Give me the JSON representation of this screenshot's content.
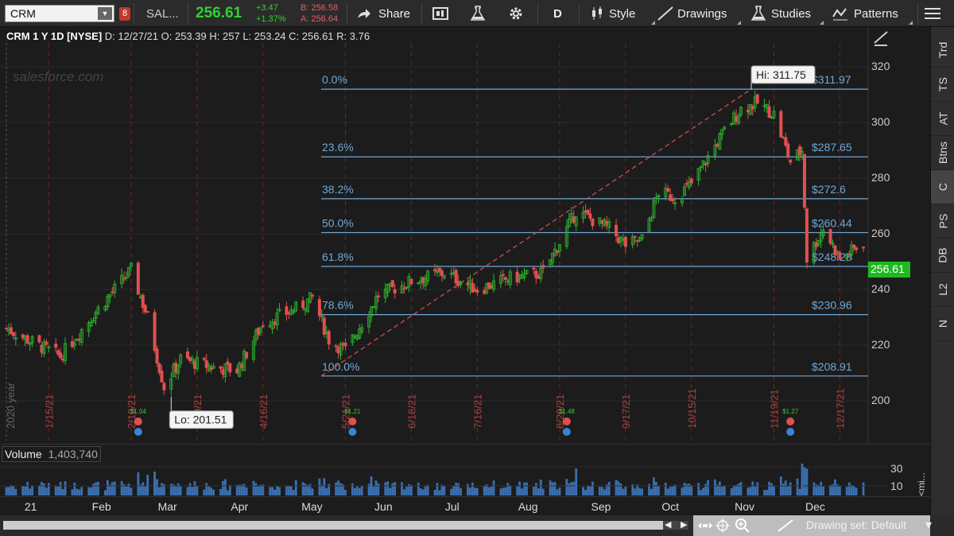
{
  "toolbar": {
    "symbol": "CRM",
    "badge": "8",
    "ticker_short": "SAL...",
    "last": "256.61",
    "net_change": "+3.47",
    "pct_change": "+1.37%",
    "bid": "B: 256.58",
    "ask": "A: 256.64",
    "share_label": "Share",
    "period_label": "D",
    "style_label": "Style",
    "drawings_label": "Drawings",
    "studies_label": "Studies",
    "patterns_label": "Patterns"
  },
  "info": {
    "title": "CRM 1 Y 1D [NYSE]",
    "date": "D: 12/27/21",
    "open": "O: 253.39",
    "high": "H: 257",
    "low": "L: 253.24",
    "close": "C: 256.61",
    "range": "R: 3.76"
  },
  "watermark": "salesforce.com",
  "year_label": "2020 year",
  "price_axis": [
    "320",
    "300",
    "280",
    "260",
    "240",
    "220",
    "200"
  ],
  "last_price_label": "256.61",
  "fib": {
    "levels": [
      {
        "pct": "0.0%",
        "price": "$311.97"
      },
      {
        "pct": "23.6%",
        "price": "$287.65"
      },
      {
        "pct": "38.2%",
        "price": "$272.6"
      },
      {
        "pct": "50.0%",
        "price": "$260.44"
      },
      {
        "pct": "61.8%",
        "price": "$248.28"
      },
      {
        "pct": "78.6%",
        "price": "$230.96"
      },
      {
        "pct": "100.0%",
        "price": "$208.91"
      }
    ]
  },
  "hi_label": "Hi: 311.75",
  "lo_label": "Lo: 201.51",
  "date_markers": [
    "1/15/21",
    "2/19/21",
    "3/19/21",
    "4/16/21",
    "5/21/21",
    "6/18/21",
    "7/16/21",
    "8/20/21",
    "9/17/21",
    "10/15/21",
    "11/19/21",
    "12/17/21"
  ],
  "earnings": [
    {
      "div": "$1.04"
    },
    {
      "div": "$1.21"
    },
    {
      "div": "$1.48"
    },
    {
      "div": "$1.27"
    }
  ],
  "volume": {
    "label": "Volume",
    "value": "1,403,740",
    "axis": [
      "30",
      "10"
    ],
    "collapse": "<mi..."
  },
  "months": [
    "21",
    "Feb",
    "Mar",
    "Apr",
    "May",
    "Jun",
    "Jul",
    "Aug",
    "Sep",
    "Oct",
    "Nov",
    "Dec"
  ],
  "sidebar": [
    "Trd",
    "TS",
    "AT",
    "Btns",
    "C",
    "PS",
    "DB",
    "L2",
    "N"
  ],
  "bottom": {
    "drawing_set": "Drawing set: Default"
  },
  "colors": {
    "up": "#2fb52f",
    "down": "#e05050",
    "fib_line": "#6fa8d8",
    "trend": "#e05050",
    "last_price_bg": "#1fb91f"
  },
  "chart_data": {
    "type": "candlestick",
    "title": "CRM 1 Y 1D [NYSE]",
    "ylim": [
      186,
      324
    ],
    "y_ticks": [
      200,
      220,
      240,
      260,
      280,
      300,
      320
    ],
    "anchor_points": [
      {
        "date": "2020-12-28",
        "price": 226
      },
      {
        "date": "2021-01-06",
        "price": 222
      },
      {
        "date": "2021-01-20",
        "price": 216
      },
      {
        "date": "2021-02-04",
        "price": 232
      },
      {
        "date": "2021-02-19",
        "price": 247
      },
      {
        "date": "2021-02-26",
        "price": 230
      },
      {
        "date": "2021-03-05",
        "price": 205
      },
      {
        "date": "2021-03-12",
        "price": 215
      },
      {
        "date": "2021-03-26",
        "price": 212
      },
      {
        "date": "2021-04-05",
        "price": 211
      },
      {
        "date": "2021-04-16",
        "price": 228
      },
      {
        "date": "2021-04-30",
        "price": 233
      },
      {
        "date": "2021-05-07",
        "price": 237
      },
      {
        "date": "2021-05-14",
        "price": 222
      },
      {
        "date": "2021-05-21",
        "price": 218
      },
      {
        "date": "2021-05-28",
        "price": 228
      },
      {
        "date": "2021-06-04",
        "price": 238
      },
      {
        "date": "2021-06-18",
        "price": 243
      },
      {
        "date": "2021-07-02",
        "price": 246
      },
      {
        "date": "2021-07-16",
        "price": 240
      },
      {
        "date": "2021-07-30",
        "price": 244
      },
      {
        "date": "2021-08-13",
        "price": 246
      },
      {
        "date": "2021-08-27",
        "price": 268
      },
      {
        "date": "2021-09-10",
        "price": 262
      },
      {
        "date": "2021-09-17",
        "price": 256
      },
      {
        "date": "2021-09-24",
        "price": 258
      },
      {
        "date": "2021-10-01",
        "price": 275
      },
      {
        "date": "2021-10-08",
        "price": 273
      },
      {
        "date": "2021-10-15",
        "price": 278
      },
      {
        "date": "2021-10-29",
        "price": 297
      },
      {
        "date": "2021-11-05",
        "price": 305
      },
      {
        "date": "2021-11-12",
        "price": 307
      },
      {
        "date": "2021-11-19",
        "price": 303
      },
      {
        "date": "2021-11-26",
        "price": 286
      },
      {
        "date": "2021-12-01",
        "price": 290
      },
      {
        "date": "2021-12-03",
        "price": 251
      },
      {
        "date": "2021-12-10",
        "price": 262
      },
      {
        "date": "2021-12-17",
        "price": 251
      },
      {
        "date": "2021-12-27",
        "price": 256.61
      }
    ],
    "high": 311.75,
    "low": 201.51,
    "fib_prices": [
      311.97,
      287.65,
      272.6,
      260.44,
      248.28,
      230.96,
      208.91
    ]
  }
}
